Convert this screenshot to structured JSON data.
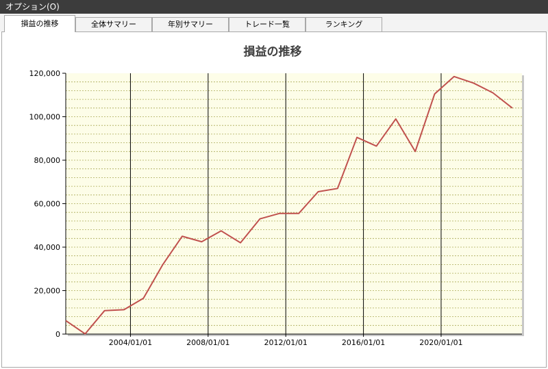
{
  "window": {
    "title": "オプション(O)"
  },
  "tabs": [
    {
      "label": "損益の推移",
      "active": true
    },
    {
      "label": "全体サマリー",
      "active": false
    },
    {
      "label": "年別サマリー",
      "active": false
    },
    {
      "label": "トレード一覧",
      "active": false
    },
    {
      "label": "ランキング",
      "active": false
    }
  ],
  "chart_data": {
    "type": "line",
    "title": "損益の推移",
    "xlabel": "",
    "ylabel": "",
    "x_tick_labels": [
      "2004/01/01",
      "2008/01/01",
      "2012/01/01",
      "2016/01/01",
      "2020/01/01"
    ],
    "y_tick_labels": [
      "0",
      "20,000",
      "40,000",
      "60,000",
      "80,000",
      "100,000",
      "120,000"
    ],
    "ylim": [
      0,
      120000
    ],
    "xlim": [
      "2000/09/01",
      "2024/03/01"
    ],
    "grid": {
      "major_vertical": true,
      "minor_horizontal": true
    },
    "colors": {
      "line": "#c0504d",
      "plot_background": "#fdfde8",
      "minor_grid": "#aaaa55",
      "major_grid": "#000000"
    },
    "series": [
      {
        "points": [
          [
            "2000/09/01",
            6200
          ],
          [
            "2001/09/01",
            100
          ],
          [
            "2002/09/01",
            10800
          ],
          [
            "2003/09/01",
            11200
          ],
          [
            "2004/09/01",
            16500
          ],
          [
            "2005/09/01",
            32000
          ],
          [
            "2006/09/01",
            45000
          ],
          [
            "2007/09/01",
            42500
          ],
          [
            "2008/09/01",
            47500
          ],
          [
            "2009/09/01",
            42000
          ],
          [
            "2010/09/01",
            53000
          ],
          [
            "2011/09/01",
            55500
          ],
          [
            "2012/09/01",
            55500
          ],
          [
            "2013/09/01",
            65500
          ],
          [
            "2014/09/01",
            67000
          ],
          [
            "2015/09/01",
            90500
          ],
          [
            "2016/09/01",
            86500
          ],
          [
            "2017/09/01",
            99000
          ],
          [
            "2018/09/01",
            84000
          ],
          [
            "2019/09/01",
            110500
          ],
          [
            "2020/09/01",
            118500
          ],
          [
            "2021/09/01",
            115500
          ],
          [
            "2022/09/01",
            111000
          ],
          [
            "2023/09/01",
            104000
          ]
        ]
      }
    ]
  }
}
